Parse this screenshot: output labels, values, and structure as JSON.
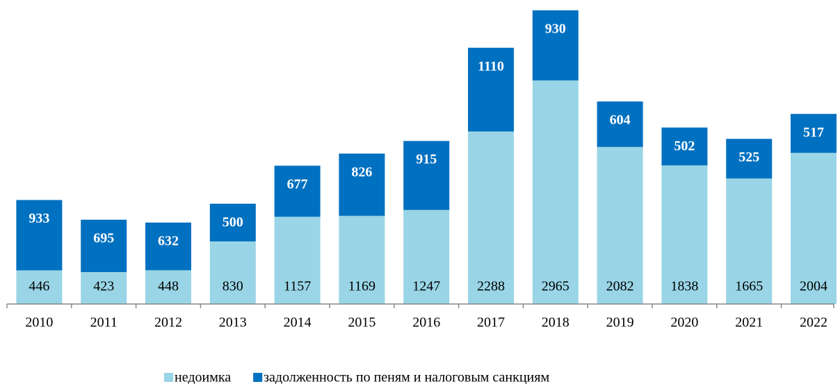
{
  "chart_data": {
    "type": "stacked-bar",
    "categories": [
      "2010",
      "2011",
      "2012",
      "2013",
      "2014",
      "2015",
      "2016",
      "2017",
      "2018",
      "2019",
      "2020",
      "2021",
      "2022"
    ],
    "series": [
      {
        "name": "недоимка",
        "color": "#99d5e6",
        "values": [
          446,
          423,
          448,
          830,
          1157,
          1169,
          1247,
          2288,
          2965,
          2082,
          1838,
          1665,
          2004
        ]
      },
      {
        "name": "задолженность по пеням и налоговым санкциям",
        "color": "#0070c0",
        "values": [
          933,
          695,
          632,
          500,
          677,
          826,
          915,
          1110,
          930,
          604,
          502,
          525,
          517
        ]
      }
    ],
    "ylim": [
      0,
      3930
    ]
  }
}
